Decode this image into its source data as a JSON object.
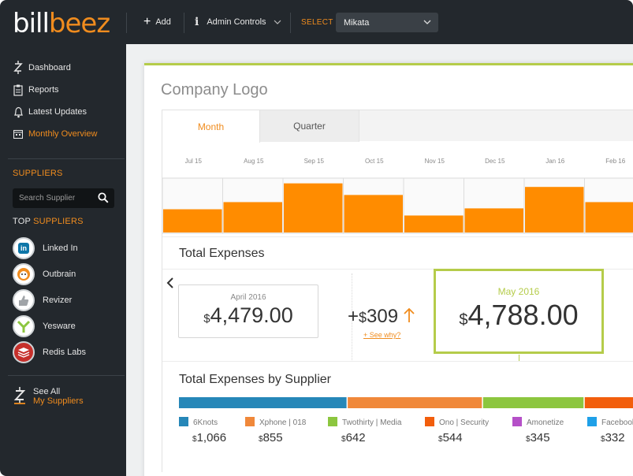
{
  "app": {
    "logo_part1": "bill",
    "logo_part2": "beez",
    "add_label": "Add",
    "admin_label": "Admin Controls",
    "select_label": "SELECT",
    "select_value": "Mikata"
  },
  "sidebar": {
    "nav": [
      {
        "label": "Dashboard",
        "icon": "bee-z-icon"
      },
      {
        "label": "Reports",
        "icon": "clipboard-icon"
      },
      {
        "label": "Latest Updates",
        "icon": "bell-icon"
      },
      {
        "label": "Monthly Overview",
        "icon": "calendar-icon"
      }
    ],
    "suppliers_heading": "SUPPLIERS",
    "search_placeholder": "Search Supplier",
    "top_heading_part1": "TOP",
    "top_heading_part2": "SUPPLIERS",
    "top_suppliers": [
      {
        "name": "Linked In",
        "icon": "linkedin-icon",
        "color": "#0e76a8"
      },
      {
        "name": "Outbrain",
        "icon": "outbrain-icon",
        "color": "#f08c1e"
      },
      {
        "name": "Revizer",
        "icon": "thumbs-up-icon",
        "color": "#999999"
      },
      {
        "name": "Yesware",
        "icon": "yesware-icon",
        "color": "#8cc63f"
      },
      {
        "name": "Redis Labs",
        "icon": "redis-icon",
        "color": "#c6302b"
      }
    ],
    "see_all_line1": "See All",
    "see_all_line2": "My Suppliers"
  },
  "main": {
    "company_logo": "Company Logo",
    "tabs": [
      "Month",
      "Quarter"
    ],
    "total_expenses_title": "Total Expenses",
    "previous": {
      "label": "April 2016",
      "currency": "$",
      "amount": "4,479.00"
    },
    "delta": {
      "sign": "+",
      "currency": "$",
      "amount": "309",
      "link": "+ See why?"
    },
    "current": {
      "label": "May 2016",
      "currency": "$",
      "amount": "4,788.00"
    },
    "by_supplier_title": "Total Expenses by Supplier",
    "suppliers": [
      {
        "name": "6Knots",
        "amount": "1,066",
        "value": 1066,
        "color": "#2687b8"
      },
      {
        "name": "Xphone | 018",
        "amount": "855",
        "value": 855,
        "color": "#f0883a"
      },
      {
        "name": "Twothirty | Media",
        "amount": "642",
        "value": 642,
        "color": "#8cc63f"
      },
      {
        "name": "Ono | Security",
        "amount": "544",
        "value": 544,
        "color": "#f25e0c"
      },
      {
        "name": "Amonetize",
        "amount": "345",
        "value": 345,
        "color": "#b550c8"
      },
      {
        "name": "Facebook",
        "amount": "332",
        "value": 332,
        "color": "#1fa0e8"
      }
    ]
  },
  "chart_data": {
    "type": "bar",
    "categories": [
      "Jul 15",
      "Aug 15",
      "Sep 15",
      "Oct 15",
      "Nov 15",
      "Dec 15",
      "Jan 16",
      "Feb 16"
    ],
    "values": [
      26,
      34,
      55,
      42,
      19,
      27,
      51,
      34
    ],
    "color": "#ff8c00"
  }
}
